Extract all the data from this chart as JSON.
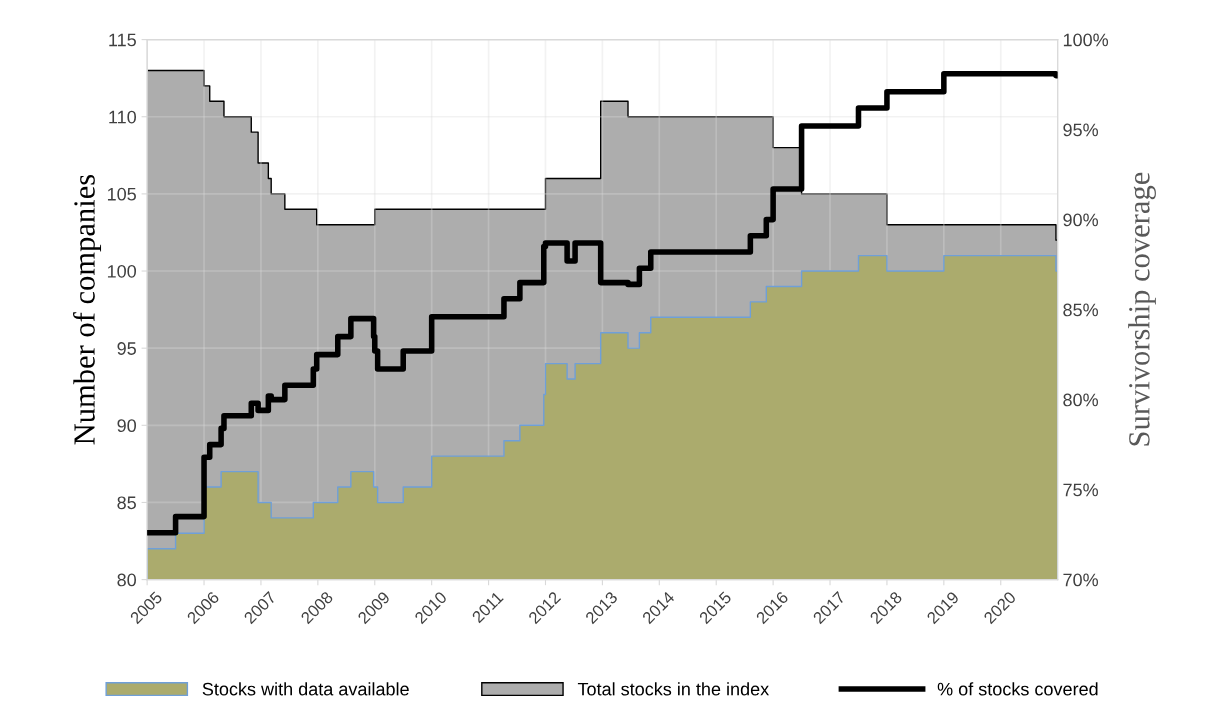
{
  "chart_data": {
    "type": "area",
    "ylabel": "Number of companies",
    "y2label": "Survivorship coverage",
    "x": [
      2005.0,
      2005.5,
      2006.0,
      2006.1,
      2006.3,
      2006.35,
      2006.83,
      2006.95,
      2007.13,
      2007.18,
      2007.42,
      2007.92,
      2007.98,
      2008.35,
      2008.58,
      2008.98,
      2009.0,
      2009.05,
      2009.5,
      2010.0,
      2011.27,
      2011.55,
      2011.97,
      2012.0,
      2012.38,
      2012.52,
      2012.97,
      2013.45,
      2013.65,
      2013.85,
      2015.6,
      2015.88,
      2016.0,
      2016.5,
      2017.5,
      2018.0,
      2019.0,
      2020.97,
      2021.0
    ],
    "series": [
      {
        "name": "Stocks with data available",
        "color": "#abab6d",
        "values": [
          82,
          83,
          86,
          86,
          87,
          87,
          87,
          85,
          85,
          84,
          84,
          85,
          85,
          86,
          87,
          86,
          86,
          85,
          86,
          88,
          89,
          90,
          92,
          94,
          93,
          94,
          96,
          95,
          96,
          97,
          98,
          99,
          99,
          100,
          101,
          100,
          101,
          100,
          100
        ]
      },
      {
        "name": "Total stocks in the index",
        "color": "#adadad",
        "values": [
          113,
          113,
          112,
          111,
          111,
          110,
          109,
          107,
          106,
          105,
          104,
          104,
          103,
          103,
          103,
          103,
          104,
          104,
          104,
          104,
          104,
          104,
          104,
          106,
          106,
          106,
          111,
          110,
          110,
          110,
          110,
          110,
          108,
          105,
          105,
          103,
          103,
          102,
          102
        ]
      },
      {
        "name": "% of stocks covered",
        "type": "step",
        "axis": "y2",
        "color": "#000000",
        "values": [
          72.6,
          73.5,
          76.8,
          77.5,
          78.4,
          79.1,
          79.8,
          79.4,
          80.2,
          80.0,
          80.8,
          81.7,
          82.5,
          83.5,
          84.5,
          83.5,
          82.7,
          81.7,
          82.7,
          84.6,
          85.6,
          86.5,
          88.5,
          88.7,
          87.7,
          88.7,
          86.5,
          86.4,
          87.3,
          88.2,
          89.1,
          90.0,
          91.7,
          95.2,
          96.2,
          97.1,
          98.1,
          98.0,
          98.0
        ]
      }
    ],
    "xlim": [
      2005,
      2021
    ],
    "xticks": [
      2005,
      2006,
      2007,
      2008,
      2009,
      2010,
      2011,
      2012,
      2013,
      2014,
      2015,
      2016,
      2017,
      2018,
      2019,
      2020
    ],
    "ylim": [
      80,
      115
    ],
    "yticks": [
      80,
      85,
      90,
      95,
      100,
      105,
      110,
      115
    ],
    "y2lim": [
      70,
      100
    ],
    "y2ticks": [
      {
        "value": 70,
        "label": "70%"
      },
      {
        "value": 75,
        "label": "75%"
      },
      {
        "value": 80,
        "label": "80%"
      },
      {
        "value": 85,
        "label": "85%"
      },
      {
        "value": 90,
        "label": "90%"
      },
      {
        "value": 95,
        "label": "95%"
      },
      {
        "value": 100,
        "label": "100%"
      }
    ],
    "grid": true,
    "legend": "bottom"
  }
}
